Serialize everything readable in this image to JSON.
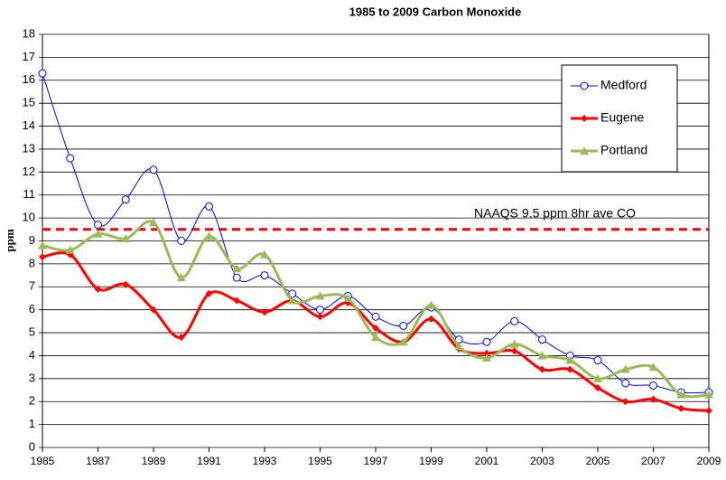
{
  "chart_data": {
    "type": "line",
    "title": "1985 to 2009 Carbon Monoxide",
    "y_label": "ppm",
    "x": [
      1985,
      1986,
      1987,
      1988,
      1989,
      1990,
      1991,
      1992,
      1993,
      1994,
      1995,
      1996,
      1997,
      1998,
      1999,
      2000,
      2001,
      2002,
      2003,
      2004,
      2005,
      2006,
      2007,
      2008,
      2009
    ],
    "series": [
      {
        "name": "Medford",
        "color": "#0000ff",
        "marker": "circle",
        "smooth": true,
        "values": [
          16.3,
          12.6,
          9.7,
          10.8,
          12.1,
          9.0,
          10.5,
          7.4,
          7.5,
          6.7,
          6.0,
          6.6,
          5.7,
          5.3,
          6.1,
          4.7,
          4.6,
          5.5,
          4.7,
          4.0,
          3.8,
          2.8,
          2.7,
          2.4,
          2.4
        ]
      },
      {
        "name": "Eugene",
        "color": "#ff0000",
        "marker": "diamond",
        "smooth": true,
        "values": [
          8.3,
          8.4,
          6.9,
          7.1,
          6.0,
          4.8,
          6.7,
          6.4,
          5.9,
          6.4,
          5.7,
          6.3,
          5.2,
          4.6,
          5.6,
          4.3,
          4.1,
          4.2,
          3.4,
          3.4,
          2.6,
          2.0,
          2.1,
          1.7,
          1.6
        ]
      },
      {
        "name": "Portland",
        "color": "#9bbb59",
        "marker": "triangle",
        "smooth": true,
        "values": [
          8.8,
          8.6,
          9.3,
          9.1,
          9.8,
          7.4,
          9.2,
          7.8,
          8.4,
          6.4,
          6.6,
          6.5,
          4.8,
          4.6,
          6.2,
          4.4,
          3.9,
          4.5,
          4.0,
          3.8,
          3.0,
          3.4,
          3.5,
          2.3,
          2.3
        ]
      }
    ],
    "reference_line": {
      "value": 9.5,
      "label": "NAAQS  9.5 ppm 8hr ave CO",
      "color": "#ff0000"
    },
    "xlim": [
      1985,
      2009
    ],
    "xticks": [
      1985,
      1987,
      1989,
      1991,
      1993,
      1995,
      1997,
      1999,
      2001,
      2003,
      2005,
      2007,
      2009
    ],
    "ylim": [
      0,
      18
    ],
    "yticks": [
      0,
      1,
      2,
      3,
      4,
      5,
      6,
      7,
      8,
      9,
      10,
      11,
      12,
      13,
      14,
      15,
      16,
      17,
      18
    ],
    "grid": true,
    "legend": "upper right"
  }
}
